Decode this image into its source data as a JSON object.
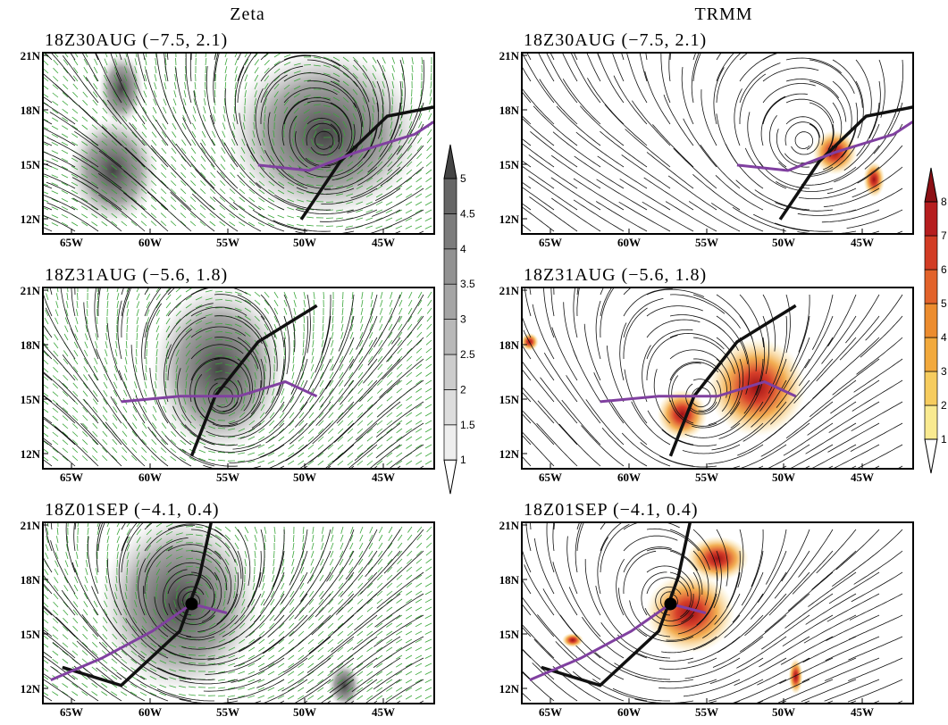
{
  "columns": [
    {
      "title": "Zeta",
      "panels": [
        "18Z30AUG (−7.5, 2.1)",
        "18Z31AUG (−5.6, 1.8)",
        "18Z01SEP (−4.1, 0.4)"
      ],
      "colorbar": [
        "1",
        "1.5",
        "2",
        "2.5",
        "3",
        "3.5",
        "4",
        "4.5",
        "5"
      ]
    },
    {
      "title": "TRMM",
      "panels": [
        "18Z30AUG (−7.5, 2.1)",
        "18Z31AUG (−5.6, 1.8)",
        "18Z01SEP (−4.1, 0.4)"
      ],
      "colorbar": [
        "1",
        "2",
        "3",
        "4",
        "5",
        "6",
        "7",
        "8"
      ]
    }
  ],
  "lat_ticks": [
    "21N",
    "18N",
    "15N",
    "12N"
  ],
  "lon_ticks": [
    "65W",
    "60W",
    "55W",
    "50W",
    "45W"
  ]
}
